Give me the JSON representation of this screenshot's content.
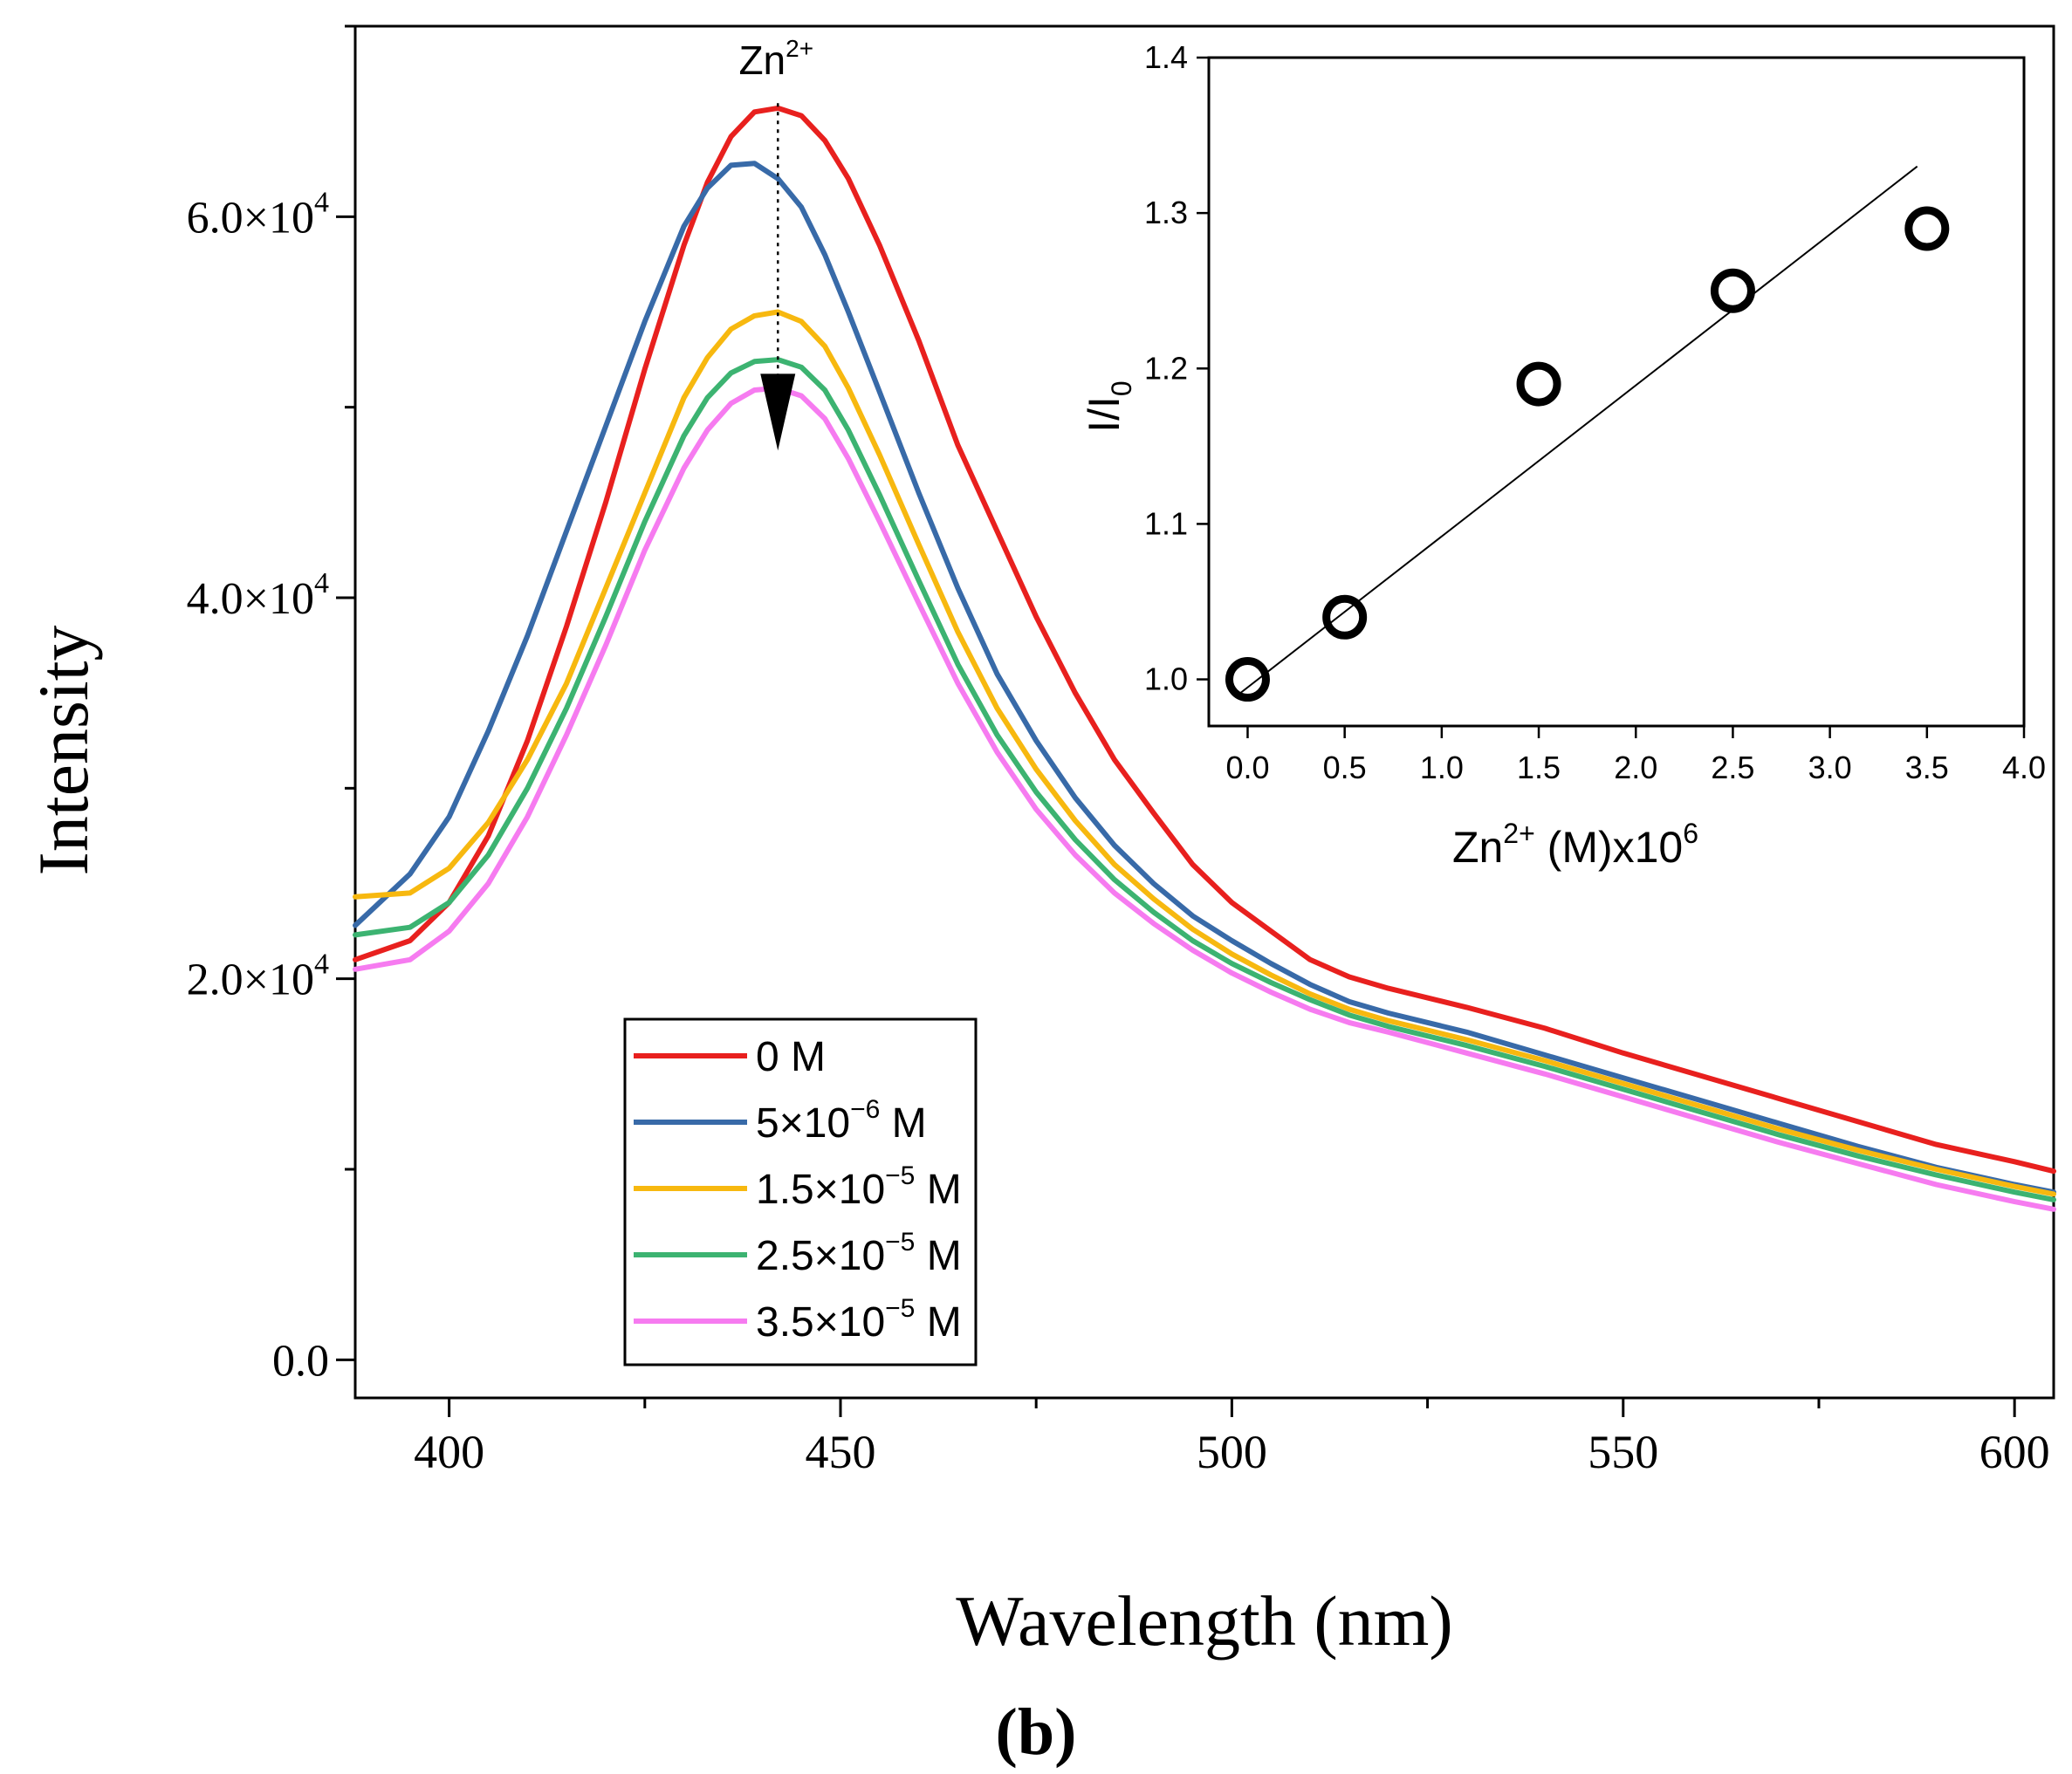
{
  "figure": {
    "panel_label": "b"
  },
  "chart_data": [
    {
      "id": "main",
      "type": "line",
      "title": "",
      "xlabel": "Wavelength (nm)",
      "ylabel": "Intensity",
      "xlim": [
        388,
        605
      ],
      "ylim": [
        -2000,
        70000
      ],
      "x_ticks": [
        400,
        450,
        500,
        550,
        600
      ],
      "x_tick_labels": [
        "400",
        "450",
        "500",
        "550",
        "600"
      ],
      "y_ticks": [
        0,
        20000,
        40000,
        60000
      ],
      "y_tick_labels": [
        {
          "mantissa": "0.0",
          "times": "",
          "base": "",
          "exp": ""
        },
        {
          "mantissa": "2.0",
          "times": "×",
          "base": "10",
          "exp": "4"
        },
        {
          "mantissa": "4.0",
          "times": "×",
          "base": "10",
          "exp": "4"
        },
        {
          "mantissa": "6.0",
          "times": "×",
          "base": "10",
          "exp": "4"
        }
      ],
      "grid": false,
      "annotation": {
        "base": "Zn",
        "sup": "2+",
        "arrow_x": 442,
        "arrow_from": 65500,
        "arrow_to": 48000
      },
      "legend_position": "lower-center",
      "series": [
        {
          "name": "0 M",
          "label": {
            "pre": "0 M",
            "sup": "",
            "post": ""
          },
          "color": "#e8201e",
          "x": [
            388,
            395,
            400,
            405,
            410,
            415,
            420,
            425,
            430,
            433,
            436,
            439,
            442,
            445,
            448,
            451,
            455,
            460,
            465,
            470,
            475,
            480,
            485,
            490,
            495,
            500,
            505,
            510,
            515,
            520,
            530,
            540,
            550,
            560,
            570,
            580,
            590,
            600,
            605
          ],
          "y": [
            21000,
            22000,
            24000,
            27500,
            32500,
            38500,
            45000,
            52000,
            58500,
            61800,
            64200,
            65500,
            65700,
            65300,
            64000,
            62000,
            58500,
            53500,
            48000,
            43500,
            39000,
            35000,
            31500,
            28700,
            26000,
            24000,
            22500,
            21000,
            20100,
            19500,
            18500,
            17400,
            16100,
            14900,
            13700,
            12500,
            11300,
            10400,
            9900
          ]
        },
        {
          "name": "5×10-6 M",
          "label": {
            "pre": "5×10",
            "sup": "−6",
            "post": " M"
          },
          "color": "#386aa8",
          "x": [
            388,
            395,
            400,
            405,
            410,
            415,
            420,
            425,
            430,
            433,
            436,
            439,
            442,
            445,
            448,
            451,
            455,
            460,
            465,
            470,
            475,
            480,
            485,
            490,
            495,
            500,
            505,
            510,
            515,
            520,
            530,
            540,
            550,
            560,
            570,
            580,
            590,
            600,
            605
          ],
          "y": [
            22800,
            25500,
            28500,
            33000,
            38000,
            43500,
            49000,
            54500,
            59500,
            61500,
            62700,
            62800,
            62000,
            60500,
            58000,
            55000,
            50800,
            45500,
            40500,
            36000,
            32500,
            29500,
            27000,
            25000,
            23300,
            22000,
            20800,
            19700,
            18800,
            18200,
            17200,
            16000,
            14800,
            13600,
            12400,
            11200,
            10100,
            9200,
            8800
          ]
        },
        {
          "name": "1.5×10-5 M",
          "label": {
            "pre": "1.5×10",
            "sup": "−5",
            "post": " M"
          },
          "color": "#f7b80f",
          "x": [
            388,
            395,
            400,
            405,
            410,
            415,
            420,
            425,
            430,
            433,
            436,
            439,
            442,
            445,
            448,
            451,
            455,
            460,
            465,
            470,
            475,
            480,
            485,
            490,
            495,
            500,
            505,
            510,
            515,
            520,
            530,
            540,
            550,
            560,
            570,
            580,
            590,
            600,
            605
          ],
          "y": [
            24300,
            24500,
            25800,
            28200,
            31500,
            35500,
            40500,
            45500,
            50500,
            52600,
            54100,
            54800,
            55000,
            54500,
            53200,
            51000,
            47500,
            42800,
            38200,
            34200,
            31000,
            28300,
            26000,
            24200,
            22600,
            21300,
            20200,
            19200,
            18400,
            17800,
            16800,
            15700,
            14500,
            13300,
            12100,
            11000,
            10000,
            9100,
            8700
          ]
        },
        {
          "name": "2.5×10-5 M",
          "label": {
            "pre": "2.5×10",
            "sup": "−5",
            "post": " M"
          },
          "color": "#3cb371",
          "x": [
            388,
            395,
            400,
            405,
            410,
            415,
            420,
            425,
            430,
            433,
            436,
            439,
            442,
            445,
            448,
            451,
            455,
            460,
            465,
            470,
            475,
            480,
            485,
            490,
            495,
            500,
            505,
            510,
            515,
            520,
            530,
            540,
            550,
            560,
            570,
            580,
            590,
            600,
            605
          ],
          "y": [
            22300,
            22700,
            24000,
            26500,
            30000,
            34200,
            39000,
            44000,
            48500,
            50500,
            51800,
            52400,
            52500,
            52100,
            50900,
            48800,
            45400,
            40900,
            36500,
            32800,
            29800,
            27300,
            25200,
            23500,
            22000,
            20800,
            19800,
            18900,
            18100,
            17500,
            16500,
            15400,
            14200,
            13000,
            11800,
            10700,
            9700,
            8800,
            8400
          ]
        },
        {
          "name": "3.5×10-5 M",
          "label": {
            "pre": "3.5×10",
            "sup": "−5",
            "post": " M"
          },
          "color": "#f67bf0",
          "x": [
            388,
            395,
            400,
            405,
            410,
            415,
            420,
            425,
            430,
            433,
            436,
            439,
            442,
            445,
            448,
            451,
            455,
            460,
            465,
            470,
            475,
            480,
            485,
            490,
            495,
            500,
            505,
            510,
            515,
            520,
            530,
            540,
            550,
            560,
            570,
            580,
            590,
            600,
            605
          ],
          "y": [
            20500,
            21000,
            22500,
            25000,
            28500,
            32800,
            37500,
            42500,
            46800,
            48800,
            50200,
            50900,
            51000,
            50600,
            49400,
            47300,
            44000,
            39700,
            35500,
            31900,
            28900,
            26500,
            24500,
            22900,
            21500,
            20300,
            19300,
            18400,
            17700,
            17200,
            16100,
            15000,
            13800,
            12600,
            11400,
            10300,
            9200,
            8300,
            7900
          ]
        }
      ]
    },
    {
      "id": "inset",
      "type": "scatter",
      "title": "",
      "xlabel": {
        "base": "Zn",
        "sup": "2+",
        "post": " (M)x10",
        "sup2": "6"
      },
      "ylabel": {
        "base": "I/I",
        "sub": "0"
      },
      "xlim": [
        -0.2,
        4.0
      ],
      "ylim": [
        0.97,
        1.4
      ],
      "x_ticks": [
        0.0,
        0.5,
        1.0,
        1.5,
        2.0,
        2.5,
        3.0,
        3.5,
        4.0
      ],
      "x_tick_labels": [
        "0.0",
        "0.5",
        "1.0",
        "1.5",
        "2.0",
        "2.5",
        "3.0",
        "3.5",
        "4.0"
      ],
      "y_ticks": [
        1.0,
        1.1,
        1.2,
        1.3,
        1.4
      ],
      "y_tick_labels": [
        "1.0",
        "1.1",
        "1.2",
        "1.3",
        "1.4"
      ],
      "grid": false,
      "points": {
        "x": [
          0.0,
          0.5,
          1.5,
          2.5,
          3.5
        ],
        "y": [
          1.0,
          1.04,
          1.19,
          1.25,
          1.29
        ]
      },
      "fit_line": {
        "x": [
          -0.05,
          3.45
        ],
        "y": [
          0.99,
          1.33
        ]
      }
    }
  ]
}
